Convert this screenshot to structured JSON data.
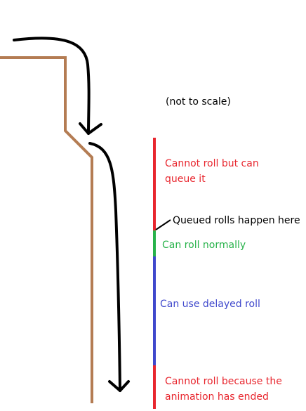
{
  "note": "(not to scale)",
  "colors": {
    "background": "#ffffff",
    "wall": "#b47c53",
    "arrow": "#000000",
    "cannot_roll": "#e8262e",
    "can_roll": "#27b24a",
    "delayed_roll": "#3f48cc",
    "text_default": "#000000"
  },
  "segments": [
    {
      "id": "cannot-roll-queue",
      "label": "Cannot roll but can queue it",
      "color_key": "cannot_roll"
    },
    {
      "id": "can-roll-normally",
      "label": "Can roll normally",
      "color_key": "can_roll"
    },
    {
      "id": "delayed-roll",
      "label": "Can use delayed roll",
      "color_key": "delayed_roll"
    },
    {
      "id": "roll-ended",
      "label": "Cannot roll because the animation has ended",
      "color_key": "cannot_roll"
    }
  ],
  "callout": {
    "label": "Queued rolls happen here"
  }
}
